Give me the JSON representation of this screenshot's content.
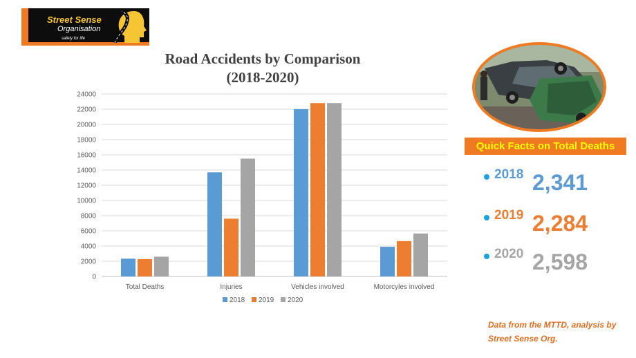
{
  "logo": {
    "name": "Street Sense",
    "org": "Organisation",
    "tagline": "safety for life"
  },
  "chart_data": {
    "type": "bar",
    "title": "Road Accidents by Comparison\n(2018-2020)",
    "categories": [
      "Total Deaths",
      "Injuries",
      "Vehicles involved",
      "Motorcyles involved"
    ],
    "series": [
      {
        "name": "2018",
        "color": "#5b9bd5",
        "values": [
          2341,
          13700,
          22000,
          3900
        ]
      },
      {
        "name": "2019",
        "color": "#ed7d31",
        "values": [
          2284,
          7600,
          22800,
          4650
        ]
      },
      {
        "name": "2020",
        "color": "#a5a5a5",
        "values": [
          2598,
          15500,
          22800,
          5650
        ]
      }
    ],
    "ylim": [
      0,
      24000
    ],
    "yticks": [
      "0",
      "2000",
      "4000",
      "6000",
      "8000",
      "10000",
      "12000",
      "14000",
      "16000",
      "18000",
      "20000",
      "22000",
      "24000"
    ],
    "grid": true,
    "legend": "bottom"
  },
  "quick_facts": {
    "title": "Quick Facts on Total Deaths",
    "items": [
      {
        "year": "2018",
        "value": "2,341",
        "color": "#5b9bd5"
      },
      {
        "year": "2019",
        "value": "2,284",
        "color": "#ed7d31"
      },
      {
        "year": "2020",
        "value": "2,598",
        "color": "#a5a5a5"
      }
    ]
  },
  "source_note": "Data from the MTTD, analysis by Street Sense Org."
}
